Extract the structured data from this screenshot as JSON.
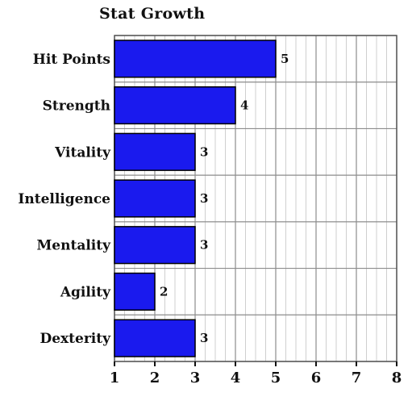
{
  "chart_data": {
    "type": "bar",
    "orientation": "horizontal",
    "title": "Stat Growth",
    "xlabel": "",
    "ylabel": "",
    "categories": [
      "Hit Points",
      "Strength",
      "Vitality",
      "Intelligence",
      "Mentality",
      "Agility",
      "Dexterity"
    ],
    "values": [
      5,
      4,
      3,
      3,
      3,
      2,
      3
    ],
    "xlim": [
      1,
      8
    ],
    "x_ticks": [
      "1",
      "2",
      "3",
      "4",
      "5",
      "6",
      "7",
      "8"
    ],
    "grid": true,
    "legend": "none",
    "colors": {
      "bar": "#1a1aee",
      "bar_edge": "#000000",
      "grid": "#8c8c8c",
      "minor_grid": "#cfcfcf",
      "text": "#111111"
    }
  }
}
